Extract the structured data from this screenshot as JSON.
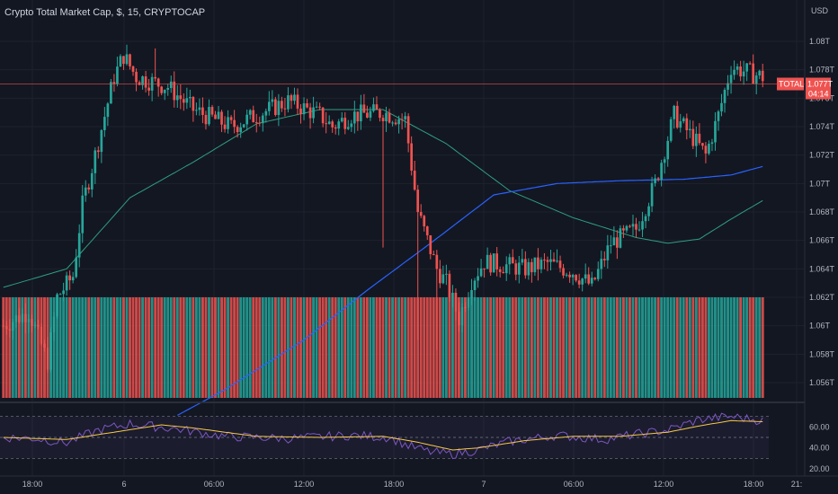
{
  "header": {
    "title": "Crypto Total Market Cap, $, 15, CRYPTOCAP",
    "currency": "USD"
  },
  "colors": {
    "background": "#131722",
    "up": "#26a69a",
    "down": "#ef5350",
    "ma_fast": "#2f9e82",
    "ma_slow": "#2962ff",
    "rsi": "#7e57c2",
    "rsi_ma": "#f7c948",
    "price_line": "#ef5350"
  },
  "price_label": {
    "symbol": "TOTAL",
    "value": "1.077T",
    "countdown": "04:14"
  },
  "chart_data": [
    {
      "type": "candlestick",
      "title": "Crypto Total Market Cap, $, 15, CRYPTOCAP",
      "ylabel": "USD",
      "y_unit": "T",
      "ylim": [
        1.0548,
        1.0824
      ],
      "y_ticks": [
        "1.056T",
        "1.058T",
        "1.06T",
        "1.062T",
        "1.064T",
        "1.066T",
        "1.068T",
        "1.07T",
        "1.072T",
        "1.074T",
        "1.076T",
        "1.078T",
        "1.08T"
      ],
      "x_ticks": [
        "18:00",
        "6",
        "06:00",
        "12:00",
        "18:00",
        "7",
        "06:00",
        "12:00",
        "18:00",
        "21:"
      ],
      "current_price": 1.077,
      "grid": true,
      "waypoints": [
        [
          0,
          1.06
        ],
        [
          8,
          1.061
        ],
        [
          14,
          1.0575
        ],
        [
          17,
          1.062
        ],
        [
          22,
          1.0635
        ],
        [
          25,
          1.0685
        ],
        [
          29,
          1.072
        ],
        [
          35,
          1.0775
        ],
        [
          38,
          1.079
        ],
        [
          42,
          1.0775
        ],
        [
          52,
          1.0768
        ],
        [
          60,
          1.0752
        ],
        [
          72,
          1.074
        ],
        [
          80,
          1.0748
        ],
        [
          90,
          1.0758
        ],
        [
          100,
          1.0748
        ],
        [
          104,
          1.074
        ],
        [
          110,
          1.0748
        ],
        [
          120,
          1.075
        ],
        [
          127,
          1.0745
        ],
        [
          131,
          1.068
        ],
        [
          137,
          1.064
        ],
        [
          140,
          1.063
        ],
        [
          144,
          1.0605
        ],
        [
          148,
          1.0632
        ],
        [
          152,
          1.0645
        ],
        [
          165,
          1.064
        ],
        [
          172,
          1.0644
        ],
        [
          180,
          1.0638
        ],
        [
          186,
          1.0628
        ],
        [
          192,
          1.0658
        ],
        [
          200,
          1.0668
        ],
        [
          206,
          1.07
        ],
        [
          212,
          1.0748
        ],
        [
          218,
          1.0732
        ],
        [
          222,
          1.072
        ],
        [
          226,
          1.0748
        ],
        [
          230,
          1.0782
        ],
        [
          240,
          1.0775
        ]
      ],
      "ma_fast_waypoints": [
        [
          0,
          1.0627
        ],
        [
          20,
          1.064
        ],
        [
          40,
          1.069
        ],
        [
          60,
          1.0715
        ],
        [
          80,
          1.0742
        ],
        [
          100,
          1.0752
        ],
        [
          120,
          1.0752
        ],
        [
          140,
          1.0728
        ],
        [
          160,
          1.0695
        ],
        [
          180,
          1.0676
        ],
        [
          200,
          1.0662
        ],
        [
          210,
          1.0658
        ],
        [
          220,
          1.0661
        ],
        [
          230,
          1.0675
        ],
        [
          240,
          1.0688
        ]
      ],
      "ma_slow_waypoints": [
        [
          55,
          1.0537
        ],
        [
          70,
          1.0555
        ],
        [
          95,
          1.059
        ],
        [
          115,
          1.0625
        ],
        [
          135,
          1.0658
        ],
        [
          155,
          1.0692
        ],
        [
          175,
          1.07
        ],
        [
          195,
          1.0702
        ],
        [
          215,
          1.0703
        ],
        [
          230,
          1.0706
        ],
        [
          240,
          1.0712
        ]
      ],
      "volume_note": "bars colored by candle direction"
    },
    {
      "type": "line",
      "name": "RSI",
      "ylim": [
        20,
        80
      ],
      "y_ticks": [
        "20.00",
        "40.00",
        "60.00"
      ],
      "bands": [
        30,
        50,
        70
      ],
      "waypoints": [
        [
          0,
          50
        ],
        [
          10,
          49
        ],
        [
          20,
          45
        ],
        [
          30,
          57
        ],
        [
          40,
          63
        ],
        [
          55,
          58
        ],
        [
          70,
          51
        ],
        [
          90,
          49
        ],
        [
          110,
          52
        ],
        [
          122,
          50
        ],
        [
          128,
          42
        ],
        [
          135,
          36
        ],
        [
          142,
          34
        ],
        [
          150,
          38
        ],
        [
          160,
          46
        ],
        [
          175,
          52
        ],
        [
          190,
          48
        ],
        [
          200,
          53
        ],
        [
          210,
          57
        ],
        [
          220,
          67
        ],
        [
          230,
          70
        ],
        [
          240,
          66
        ]
      ],
      "ma_waypoints": [
        [
          0,
          50
        ],
        [
          20,
          48
        ],
        [
          35,
          55
        ],
        [
          50,
          62
        ],
        [
          60,
          59
        ],
        [
          80,
          51
        ],
        [
          100,
          50
        ],
        [
          120,
          51
        ],
        [
          130,
          46
        ],
        [
          142,
          38
        ],
        [
          150,
          40
        ],
        [
          165,
          47
        ],
        [
          180,
          51
        ],
        [
          195,
          51
        ],
        [
          210,
          55
        ],
        [
          220,
          61
        ],
        [
          230,
          66
        ],
        [
          240,
          65
        ]
      ]
    }
  ]
}
